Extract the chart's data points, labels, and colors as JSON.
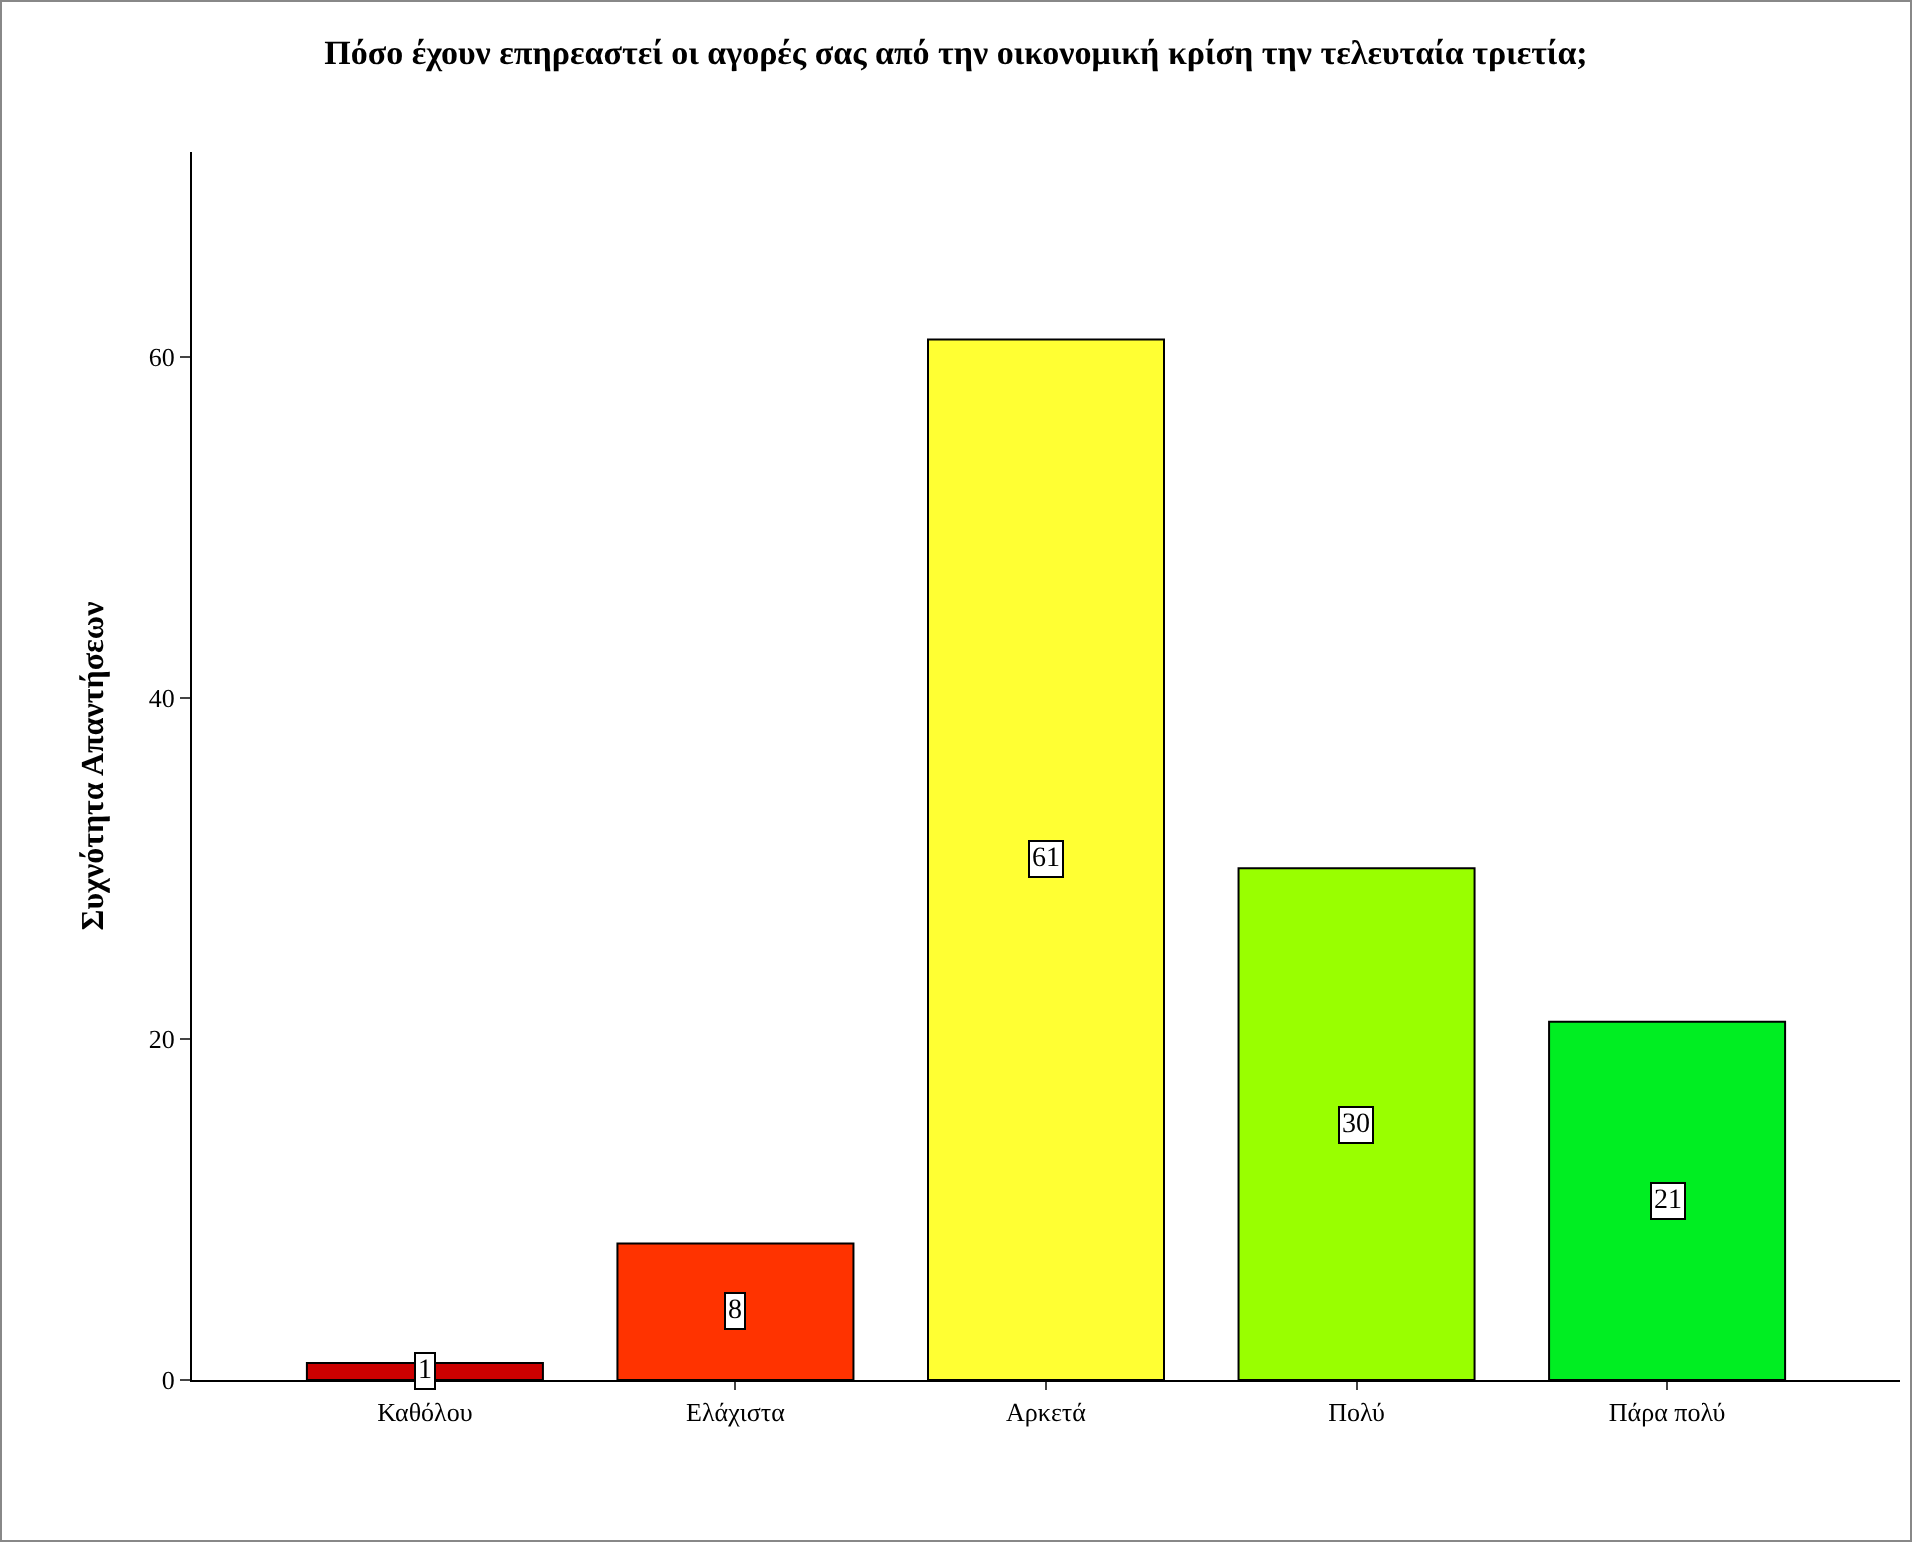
{
  "chart_data": {
    "type": "bar",
    "title": "Πόσο έχουν επηρεαστεί οι αγορές σας από την οικονομική κρίση την τελευταία τριετία;",
    "ylabel": "Συχνότητα Απαντήσεων",
    "categories": [
      "Καθόλου",
      "Ελάχιστα",
      "Αρκετά",
      "Πολύ",
      "Πάρα πολύ"
    ],
    "values": [
      1,
      8,
      61,
      30,
      21
    ],
    "colors": [
      "#cc0000",
      "#ff3300",
      "#ffff33",
      "#99ff00",
      "#00ee22"
    ],
    "ylim": [
      0,
      72
    ],
    "yticks": [
      0,
      20,
      40,
      60
    ],
    "data_labels": true
  }
}
